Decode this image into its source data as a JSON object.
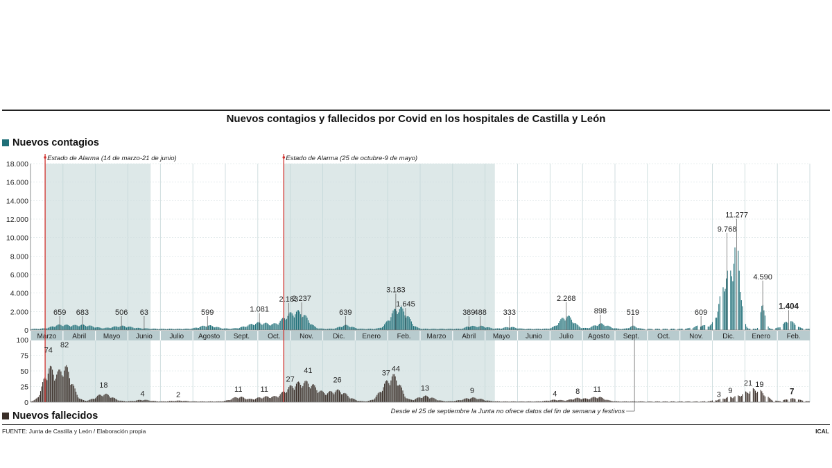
{
  "title": "Nuevos contagios y fallecidos por Covid en los hospitales de Castilla y León",
  "legend": {
    "cases_label": "Nuevos contagios",
    "deaths_label": "Nuevos fallecidos"
  },
  "colors": {
    "cases": "#1f6f78",
    "deaths": "#3a2e28",
    "band": "#dde8e8",
    "month_bar": "#b8cbce",
    "alarm_line": "#d0312d"
  },
  "footer": {
    "source": "FUENTE: Junta de Castilla y León / Elaboración propia",
    "agency": "ICAL"
  },
  "chart_data": [
    {
      "type": "bar",
      "name": "Nuevos contagios",
      "ylim": [
        0,
        18000
      ],
      "yticks": [
        "18.000",
        "16.000",
        "14.000",
        "12.000",
        "10.000",
        "8.000",
        "6.000",
        "4.000",
        "2.000",
        "0"
      ],
      "months": [
        "Marzo",
        "Abril",
        "Mayo",
        "Junio",
        "Julio",
        "Agosto",
        "Sept.",
        "Oct.",
        "Nov.",
        "Dic.",
        "Enero",
        "Feb.",
        "Marzo",
        "Abril",
        "Mayo",
        "Junio",
        "Julio",
        "Agosto",
        "Sept.",
        "Oct.",
        "Nov.",
        "Dic.",
        "Enero",
        "Feb."
      ],
      "alarm_periods": [
        {
          "label": "Estado de Alarma (14 de marzo-21 de junio)",
          "from_month": 0.45,
          "to_month": 3.7
        },
        {
          "label": "Estado de Alarma (25 de octubre-9 de mayo)",
          "from_month": 7.8,
          "to_month": 14.3
        }
      ],
      "annotations": [
        {
          "month": 0.9,
          "value": 659,
          "label": "659"
        },
        {
          "month": 1.6,
          "value": 683,
          "label": "683"
        },
        {
          "month": 2.8,
          "value": 506,
          "label": "506"
        },
        {
          "month": 3.5,
          "value": 63,
          "label": "63"
        },
        {
          "month": 5.45,
          "value": 599,
          "label": "599"
        },
        {
          "month": 7.05,
          "value": 1081,
          "label": "1.081"
        },
        {
          "month": 7.95,
          "value": 2183,
          "label": "2.183"
        },
        {
          "month": 8.35,
          "value": 2237,
          "label": "2.237"
        },
        {
          "month": 9.7,
          "value": 639,
          "label": "639"
        },
        {
          "month": 11.25,
          "value": 3183,
          "label": "3.183"
        },
        {
          "month": 11.55,
          "value": 1645,
          "label": "1.645"
        },
        {
          "month": 13.5,
          "value": 389,
          "label": "389"
        },
        {
          "month": 13.85,
          "value": 488,
          "label": "488"
        },
        {
          "month": 14.75,
          "value": 333,
          "label": "333"
        },
        {
          "month": 16.5,
          "value": 2268,
          "label": "2.268"
        },
        {
          "month": 17.55,
          "value": 898,
          "label": "898"
        },
        {
          "month": 18.55,
          "value": 519,
          "label": "519"
        },
        {
          "month": 20.65,
          "value": 609,
          "label": "609"
        },
        {
          "month": 21.45,
          "value": 9768,
          "label": "9.768"
        },
        {
          "month": 21.75,
          "value": 11277,
          "label": "11.277"
        },
        {
          "month": 22.55,
          "value": 4590,
          "label": "4.590"
        },
        {
          "month": 23.35,
          "value": 1404,
          "label": "1.404",
          "bold": true
        }
      ]
    },
    {
      "type": "bar",
      "name": "Nuevos fallecidos",
      "ylim": [
        0,
        100
      ],
      "yticks": [
        "100",
        "75",
        "50",
        "25",
        "0"
      ],
      "note": "Desde el 25 de septiembre la Junta no ofrece datos del fin de semana y festivos",
      "annotations": [
        {
          "month": 0.55,
          "value": 74,
          "label": "74"
        },
        {
          "month": 1.05,
          "value": 82,
          "label": "82"
        },
        {
          "month": 2.25,
          "value": 18,
          "label": "18"
        },
        {
          "month": 3.45,
          "value": 4,
          "label": "4"
        },
        {
          "month": 4.55,
          "value": 2,
          "label": "2"
        },
        {
          "month": 6.4,
          "value": 11,
          "label": "11"
        },
        {
          "month": 7.2,
          "value": 11,
          "label": "11"
        },
        {
          "month": 8.0,
          "value": 27,
          "label": "27"
        },
        {
          "month": 8.55,
          "value": 41,
          "label": "41"
        },
        {
          "month": 9.45,
          "value": 26,
          "label": "26"
        },
        {
          "month": 10.95,
          "value": 37,
          "label": "37"
        },
        {
          "month": 11.25,
          "value": 44,
          "label": "44"
        },
        {
          "month": 12.15,
          "value": 13,
          "label": "13"
        },
        {
          "month": 13.6,
          "value": 9,
          "label": "9"
        },
        {
          "month": 16.15,
          "value": 4,
          "label": "4"
        },
        {
          "month": 16.85,
          "value": 8,
          "label": "8"
        },
        {
          "month": 17.45,
          "value": 11,
          "label": "11"
        },
        {
          "month": 21.2,
          "value": 3,
          "label": "3"
        },
        {
          "month": 21.55,
          "value": 9,
          "label": "9"
        },
        {
          "month": 22.1,
          "value": 21,
          "label": "21"
        },
        {
          "month": 22.45,
          "value": 19,
          "label": "19"
        },
        {
          "month": 23.45,
          "value": 7,
          "label": "7",
          "bold": true
        }
      ]
    }
  ]
}
